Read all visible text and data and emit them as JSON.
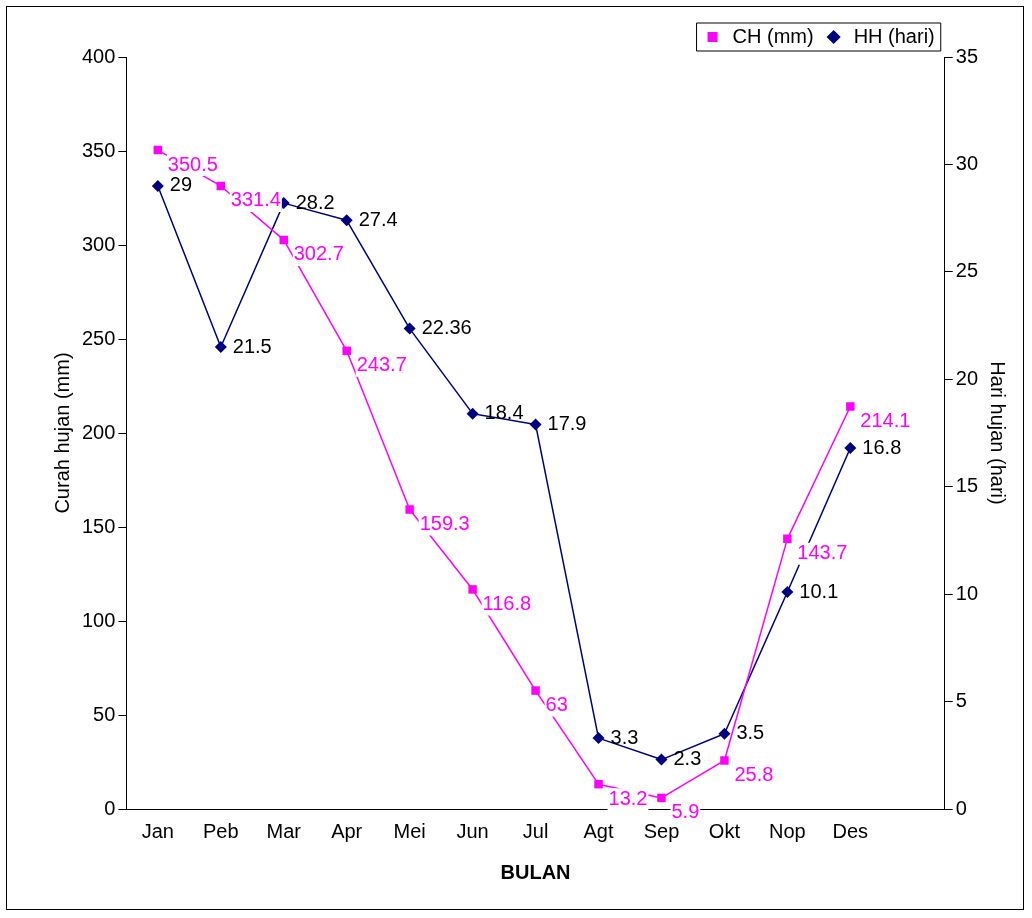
{
  "chart_data": {
    "type": "line",
    "xlabel": "BULAN",
    "ylabel": "Curah hujan (mm)",
    "y2label": "Hari hujan (hari)",
    "categories": [
      "Jan",
      "Peb",
      "Mar",
      "Apr",
      "Mei",
      "Jun",
      "Jul",
      "Agt",
      "Sep",
      "Okt",
      "Nop",
      "Des",
      null
    ],
    "series": [
      {
        "name": "CH (mm)",
        "color": "#ff00ff",
        "marker": "square",
        "values": [
          350.5,
          331.4,
          302.7,
          243.7,
          159.3,
          116.8,
          63,
          13.2,
          5.9,
          25.8,
          143.7,
          214.1,
          null
        ]
      },
      {
        "name": "HH (hari)",
        "color": "#000080",
        "marker": "diamond",
        "axis": "y2",
        "values": [
          29,
          21.5,
          28.2,
          27.4,
          22.36,
          18.4,
          17.9,
          3.3,
          2.3,
          3.5,
          10.1,
          16.8,
          null
        ]
      }
    ],
    "ylim": [
      0,
      400
    ],
    "yticks": [
      0,
      50,
      100,
      150,
      200,
      250,
      300,
      350,
      400
    ],
    "y2lim": [
      0,
      35
    ],
    "y2ticks": [
      0,
      5,
      10,
      15,
      20,
      25,
      30,
      35
    ],
    "data_labels": true,
    "grid": false,
    "legend": "top right",
    "line_style": "solid"
  }
}
